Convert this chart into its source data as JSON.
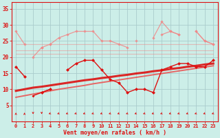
{
  "background_color": "#cceee8",
  "grid_color": "#aacccc",
  "xlabel": "Vent moyen/en rafales ( km/h )",
  "x_values": [
    0,
    1,
    2,
    3,
    4,
    5,
    6,
    7,
    8,
    9,
    10,
    11,
    12,
    13,
    14,
    15,
    16,
    17,
    18,
    19,
    20,
    21,
    22,
    23
  ],
  "ylim": [
    0,
    37
  ],
  "yticks": [
    5,
    10,
    15,
    20,
    25,
    30,
    35
  ],
  "color_light": "#f08888",
  "color_dark": "#dd1111",
  "color_mid": "#ee4444",
  "lines_light": [
    [
      28,
      24,
      null,
      null,
      24,
      null,
      null,
      null,
      null,
      null,
      null,
      null,
      null,
      null,
      null,
      null,
      26,
      31,
      28,
      27,
      null,
      28,
      25,
      24
    ],
    [
      null,
      null,
      null,
      23,
      24,
      26,
      27,
      28,
      28,
      28,
      25,
      25,
      24,
      23,
      null,
      null,
      null,
      null,
      null,
      null,
      null,
      null,
      null,
      null
    ],
    [
      null,
      null,
      null,
      null,
      null,
      null,
      null,
      null,
      null,
      null,
      null,
      null,
      null,
      null,
      25,
      null,
      null,
      27,
      28,
      27,
      null,
      28,
      25,
      24
    ],
    [
      null,
      null,
      20,
      23,
      null,
      null,
      null,
      null,
      null,
      null,
      null,
      null,
      null,
      null,
      null,
      null,
      null,
      null,
      null,
      null,
      null,
      null,
      null,
      null
    ]
  ],
  "flat_lines": [
    [
      24,
      24,
      24,
      24,
      24,
      24,
      24,
      24,
      24,
      24,
      24,
      24,
      24,
      24,
      24,
      24,
      24,
      24,
      24,
      24,
      24,
      24,
      24,
      24
    ],
    [
      22,
      22,
      22,
      22,
      22,
      22,
      22,
      22,
      22,
      22,
      22,
      22,
      22,
      22,
      22,
      22,
      22,
      22,
      22,
      22,
      22,
      22,
      22,
      22
    ],
    [
      21,
      21,
      21,
      21,
      21,
      21,
      21,
      21,
      21,
      21,
      21,
      21,
      21,
      21,
      21,
      21,
      21,
      21,
      21,
      21,
      21,
      21,
      21,
      21
    ]
  ],
  "line_dark1": [
    17,
    14,
    null,
    9,
    10,
    null,
    16,
    18,
    19,
    19,
    16,
    13,
    12,
    9,
    10,
    10,
    9,
    16,
    17,
    18,
    18,
    17,
    17,
    19
  ],
  "line_dark2": [
    null,
    null,
    8,
    9,
    10,
    null,
    null,
    null,
    null,
    null,
    null,
    null,
    null,
    null,
    null,
    null,
    null,
    null,
    null,
    null,
    null,
    null,
    null,
    null
  ],
  "regression1": [
    9.5,
    10.0,
    10.5,
    10.8,
    11.2,
    11.6,
    12.0,
    12.4,
    12.8,
    13.1,
    13.5,
    13.8,
    14.2,
    14.5,
    14.9,
    15.2,
    15.6,
    15.9,
    16.3,
    16.6,
    17.0,
    17.3,
    17.7,
    18.0
  ],
  "regression2": [
    7.5,
    8.0,
    8.5,
    9.0,
    9.5,
    10.0,
    10.4,
    10.8,
    11.2,
    11.7,
    12.1,
    12.5,
    12.9,
    13.3,
    13.7,
    14.1,
    14.5,
    14.9,
    15.3,
    15.7,
    16.1,
    16.5,
    16.9,
    17.3
  ],
  "wind_dirs": [
    90,
    90,
    270,
    270,
    225,
    225,
    225,
    225,
    225,
    225,
    225,
    225,
    225,
    225,
    225,
    225,
    225,
    225,
    225,
    225,
    225,
    225,
    225,
    225
  ]
}
